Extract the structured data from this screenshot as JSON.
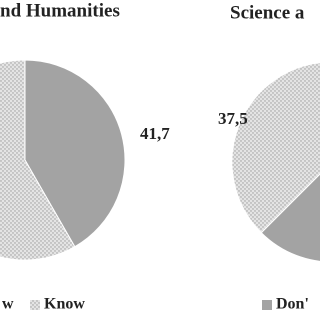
{
  "chart_data": [
    {
      "type": "pie",
      "title": "nd Humanities",
      "categories": [
        "w",
        "Know"
      ],
      "values": [
        41.7,
        58.3
      ],
      "value_labels": [
        "41,7",
        null
      ],
      "colors": [
        "#a3a3a3",
        "#e4e4e4"
      ]
    },
    {
      "type": "pie",
      "title": "Science a",
      "categories": [
        "Don'",
        null
      ],
      "values": [
        62.5,
        37.5
      ],
      "value_labels": [
        null,
        "37,5"
      ],
      "colors": [
        "#a3a3a3",
        "#e4e4e4"
      ]
    }
  ]
}
